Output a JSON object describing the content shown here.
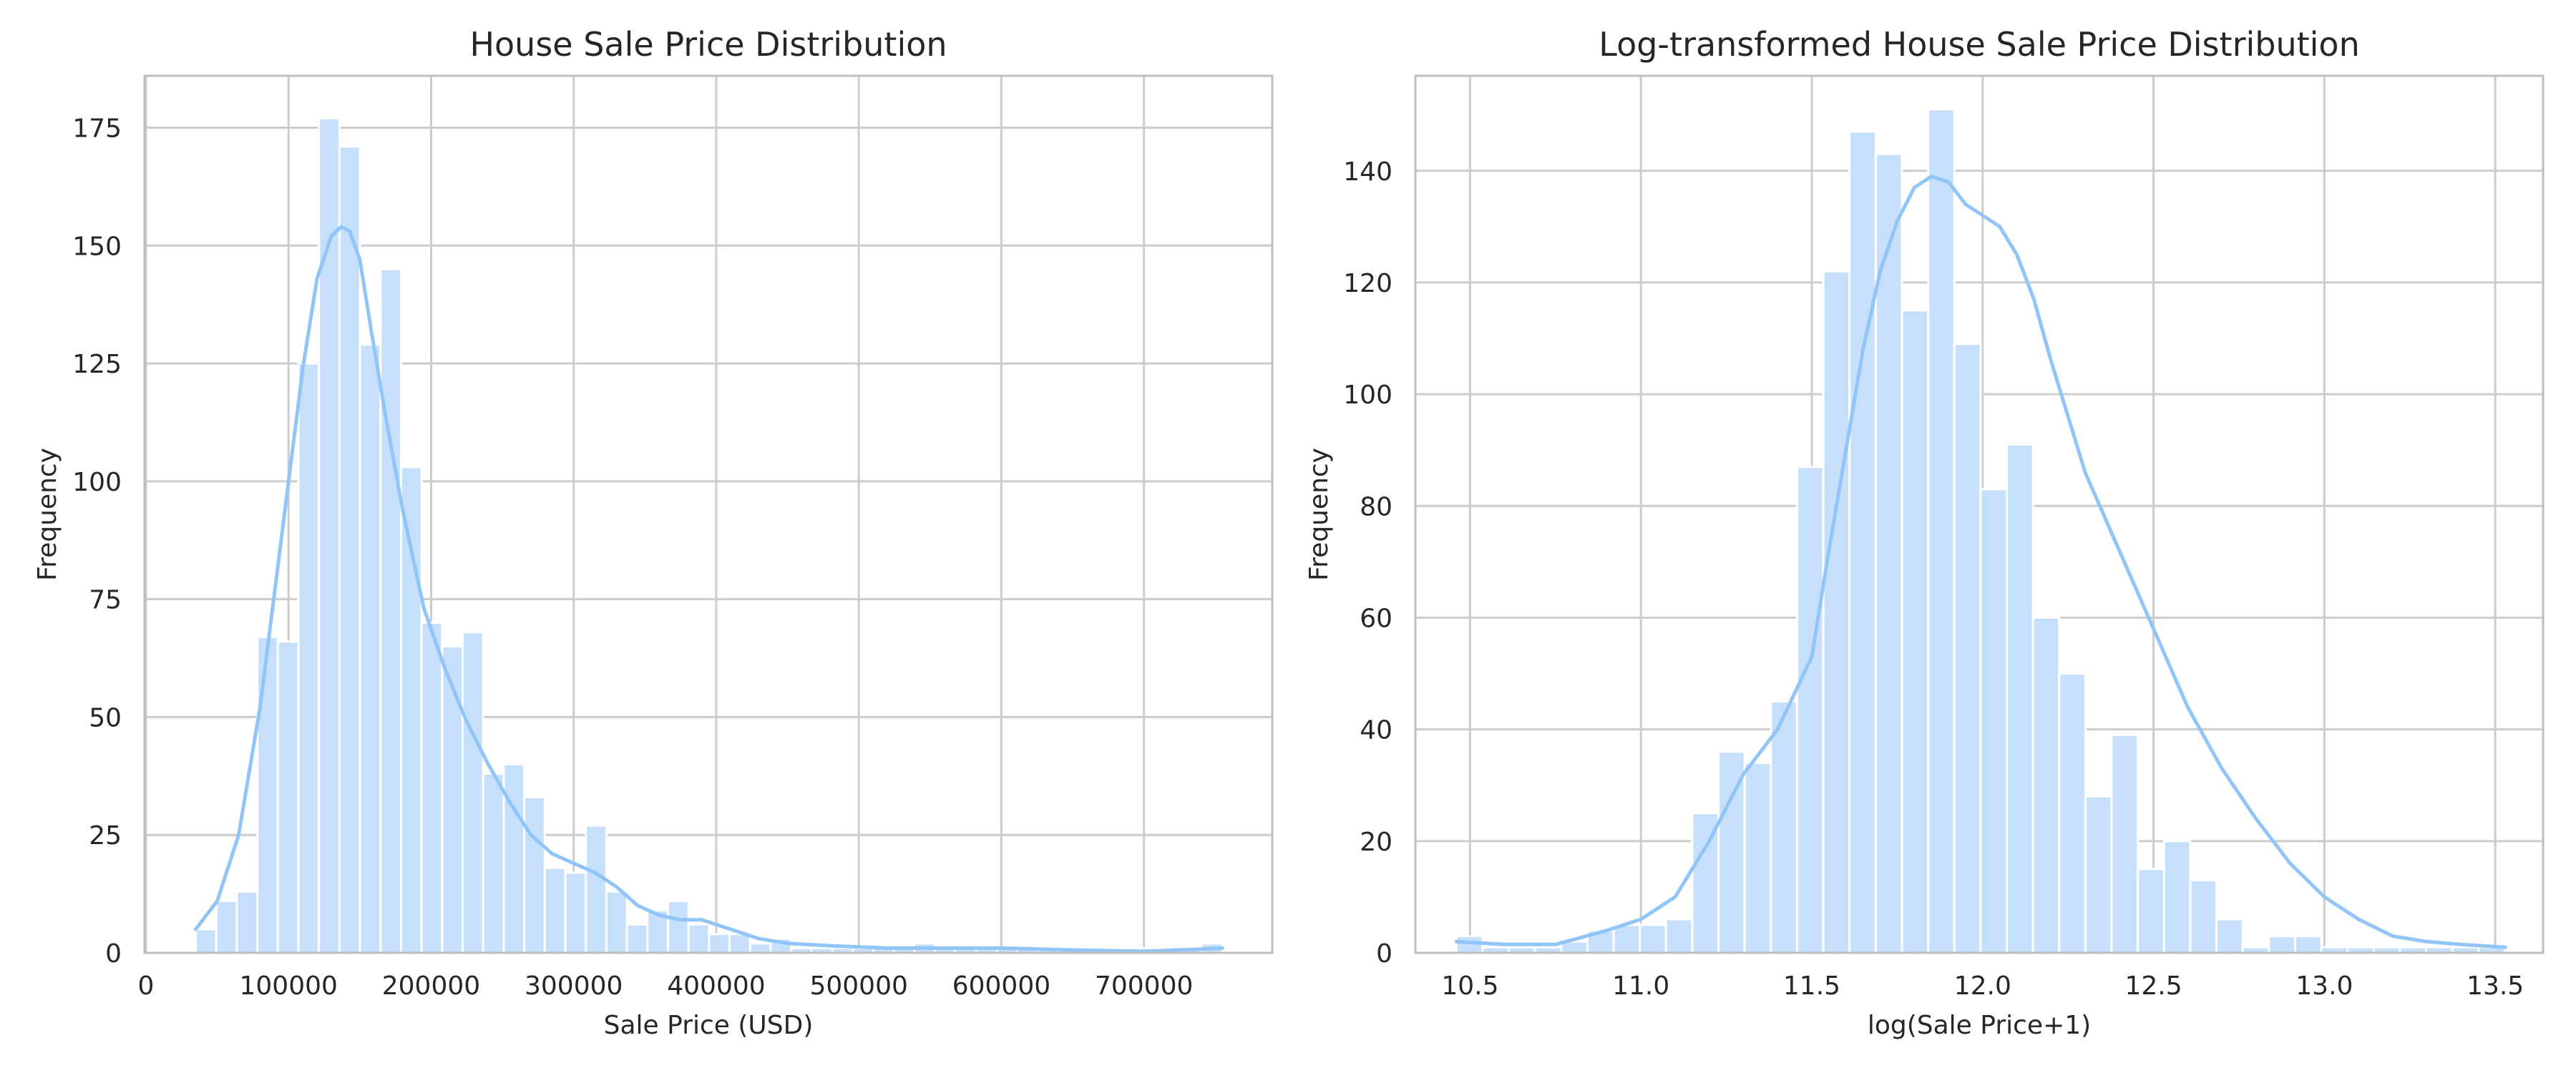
{
  "colors": {
    "bar_fill": "#c6e0fb",
    "kde_line": "#92c5f7",
    "grid": "#cccccc",
    "frame": "#bdbdbd",
    "text": "#262626"
  },
  "chart_data": [
    {
      "type": "bar",
      "title": "House Sale Price Distribution",
      "xlabel": "Sale Price (USD)",
      "ylabel": "Frequency",
      "xlim": [
        -1000,
        790000
      ],
      "ylim": [
        0,
        186
      ],
      "xticks": [
        0,
        100000,
        200000,
        300000,
        400000,
        500000,
        600000,
        700000
      ],
      "xtick_labels": [
        "0",
        "100000",
        "200000",
        "300000",
        "400000",
        "500000",
        "600000",
        "700000"
      ],
      "yticks": [
        0,
        25,
        50,
        75,
        100,
        125,
        150,
        175
      ],
      "ytick_labels": [
        "0",
        "25",
        "50",
        "75",
        "100",
        "125",
        "150",
        "175"
      ],
      "grid": true,
      "legend": "none",
      "bin_start": 34900,
      "bin_width": 14402,
      "values": [
        5,
        11,
        13,
        67,
        66,
        125,
        177,
        171,
        129,
        145,
        103,
        70,
        65,
        68,
        38,
        40,
        33,
        18,
        17,
        27,
        13,
        6,
        9,
        11,
        6,
        4,
        4,
        2,
        3,
        1,
        1,
        1,
        1,
        1,
        1,
        2,
        1,
        1,
        1,
        1,
        1,
        1,
        1,
        1,
        1,
        1,
        1,
        1,
        1,
        2
      ],
      "kde": {
        "x": [
          34900,
          50000,
          65000,
          80000,
          95000,
          110000,
          120000,
          130000,
          137000,
          143000,
          150000,
          158000,
          168000,
          180000,
          195000,
          210000,
          225000,
          240000,
          255000,
          270000,
          285000,
          300000,
          315000,
          330000,
          345000,
          360000,
          375000,
          390000,
          410000,
          430000,
          450000,
          480000,
          520000,
          560000,
          600000,
          650000,
          700000,
          740000,
          755000
        ],
        "y": [
          5,
          11,
          25,
          52,
          88,
          124,
          143,
          152,
          154,
          153,
          147,
          132,
          114,
          94,
          73,
          60,
          49,
          40,
          32,
          25,
          21,
          19,
          17,
          14,
          10,
          8,
          7,
          7,
          5,
          3,
          2,
          1.5,
          1,
          1,
          1,
          0.6,
          0.3,
          0.8,
          1
        ]
      }
    },
    {
      "type": "bar",
      "title": "Log-transformed House Sale Price Distribution",
      "xlabel": "log(Sale Price+1)",
      "ylabel": "Frequency",
      "xlim": [
        10.34,
        13.64
      ],
      "ylim": [
        0,
        157
      ],
      "xticks": [
        10.5,
        11.0,
        11.5,
        12.0,
        12.5,
        13.0,
        13.5
      ],
      "xtick_labels": [
        "10.5",
        "11.0",
        "11.5",
        "12.0",
        "12.5",
        "13.0",
        "13.5"
      ],
      "yticks": [
        0,
        20,
        40,
        60,
        80,
        100,
        120,
        140
      ],
      "ytick_labels": [
        "0",
        "20",
        "40",
        "60",
        "80",
        "100",
        "120",
        "140"
      ],
      "grid": true,
      "legend": "none",
      "bin_start": 10.46,
      "bin_width": 0.0767,
      "values": [
        3,
        1,
        1,
        1,
        2,
        4,
        5,
        5,
        6,
        25,
        36,
        34,
        45,
        87,
        122,
        147,
        143,
        115,
        151,
        109,
        83,
        91,
        60,
        50,
        28,
        39,
        15,
        20,
        13,
        6,
        1,
        3,
        3,
        1,
        1,
        1,
        1,
        1,
        1,
        1
      ],
      "kde": {
        "x": [
          10.46,
          10.6,
          10.75,
          10.9,
          11.0,
          11.1,
          11.2,
          11.3,
          11.4,
          11.5,
          11.55,
          11.6,
          11.65,
          11.7,
          11.75,
          11.8,
          11.85,
          11.9,
          11.95,
          12.0,
          12.05,
          12.1,
          12.15,
          12.2,
          12.25,
          12.3,
          12.4,
          12.5,
          12.6,
          12.7,
          12.8,
          12.9,
          13.0,
          13.1,
          13.2,
          13.3,
          13.4,
          13.53
        ],
        "y": [
          2,
          1.5,
          1.5,
          4,
          6,
          10,
          20,
          32,
          40,
          53,
          72,
          90,
          108,
          122,
          131,
          137,
          139,
          138,
          134,
          132,
          130,
          125,
          117,
          106,
          96,
          86,
          72,
          58,
          44,
          33,
          24,
          16,
          10,
          6,
          3,
          2,
          1.5,
          1
        ]
      }
    }
  ]
}
